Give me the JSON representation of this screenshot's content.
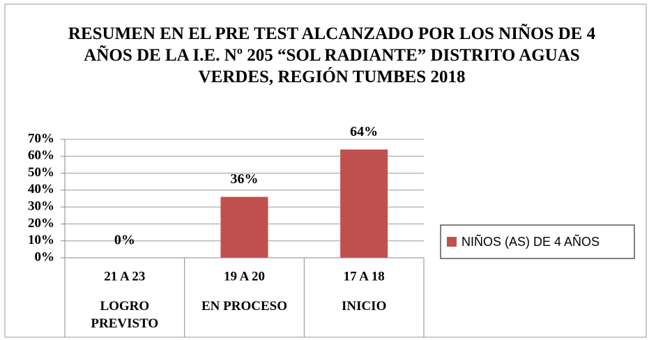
{
  "chart_data": {
    "type": "bar",
    "title": "RESUMEN EN EL PRE TEST ALCANZADO POR LOS NIÑOS DE 4 AÑOS DE LA I.E. Nº 205 “SOL RADIANTE” DISTRITO AGUAS VERDES, REGIÓN TUMBES 2018",
    "categories": [
      "21 A 23",
      "19 A 20",
      "17 A 18"
    ],
    "category_groups": [
      "LOGRO PREVISTO",
      "EN PROCESO",
      "INICIO"
    ],
    "series": [
      {
        "name": "NIÑOS (AS) DE 4 AÑOS",
        "color": "#c0504d",
        "values": [
          0,
          36,
          64
        ],
        "value_labels": [
          "0%",
          "36%",
          "64%"
        ]
      }
    ],
    "ylim": [
      0,
      70
    ],
    "yticks": [
      {
        "value": 0,
        "label": "0%"
      },
      {
        "value": 10,
        "label": "10%"
      },
      {
        "value": 20,
        "label": "20%"
      },
      {
        "value": 30,
        "label": "30%"
      },
      {
        "value": 40,
        "label": "40%"
      },
      {
        "value": 50,
        "label": "50%"
      },
      {
        "value": 60,
        "label": "60%"
      },
      {
        "value": 70,
        "label": "70%"
      }
    ],
    "grid": true,
    "legend": "right"
  }
}
